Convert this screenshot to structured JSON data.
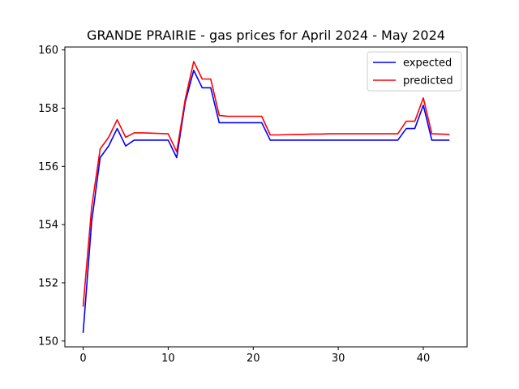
{
  "chart_data": {
    "type": "line",
    "title": "GRANDE PRAIRIE - gas prices for April 2024 - May 2024",
    "xlabel": "",
    "ylabel": "",
    "xlim": [
      -2.15,
      45.15
    ],
    "ylim": [
      149.8,
      160.1
    ],
    "xticks": [
      0,
      10,
      20,
      30,
      40
    ],
    "yticks": [
      150,
      152,
      154,
      156,
      158,
      160
    ],
    "grid": false,
    "legend_position": "top-right",
    "x": [
      0,
      1,
      2,
      3,
      4,
      5,
      6,
      7,
      8,
      9,
      10,
      11,
      12,
      13,
      14,
      15,
      16,
      17,
      18,
      19,
      20,
      21,
      22,
      23,
      24,
      25,
      26,
      27,
      28,
      29,
      30,
      31,
      32,
      33,
      34,
      35,
      36,
      37,
      38,
      39,
      40,
      41,
      42,
      43
    ],
    "series": [
      {
        "name": "expected",
        "color": "#0000ff",
        "values": [
          150.3,
          154.1,
          156.3,
          156.7,
          157.3,
          156.7,
          156.9,
          156.9,
          156.9,
          156.9,
          156.9,
          156.3,
          158.2,
          159.3,
          158.7,
          158.7,
          157.5,
          157.5,
          157.5,
          157.5,
          157.5,
          157.5,
          156.9,
          156.9,
          156.9,
          156.9,
          156.9,
          156.9,
          156.9,
          156.9,
          156.9,
          156.9,
          156.9,
          156.9,
          156.9,
          156.9,
          156.9,
          156.9,
          157.3,
          157.3,
          158.1,
          156.9,
          156.9,
          156.9
        ]
      },
      {
        "name": "predicted",
        "color": "#ff0000",
        "values": [
          151.2,
          154.6,
          156.6,
          157.0,
          157.6,
          157.0,
          157.15,
          157.15,
          157.14,
          157.13,
          157.12,
          156.5,
          158.3,
          159.6,
          159.0,
          159.0,
          157.75,
          157.72,
          157.72,
          157.72,
          157.72,
          157.72,
          157.08,
          157.08,
          157.09,
          157.1,
          157.1,
          157.11,
          157.11,
          157.12,
          157.12,
          157.12,
          157.12,
          157.12,
          157.12,
          157.12,
          157.12,
          157.12,
          157.55,
          157.55,
          158.35,
          157.12,
          157.11,
          157.1
        ]
      }
    ]
  }
}
